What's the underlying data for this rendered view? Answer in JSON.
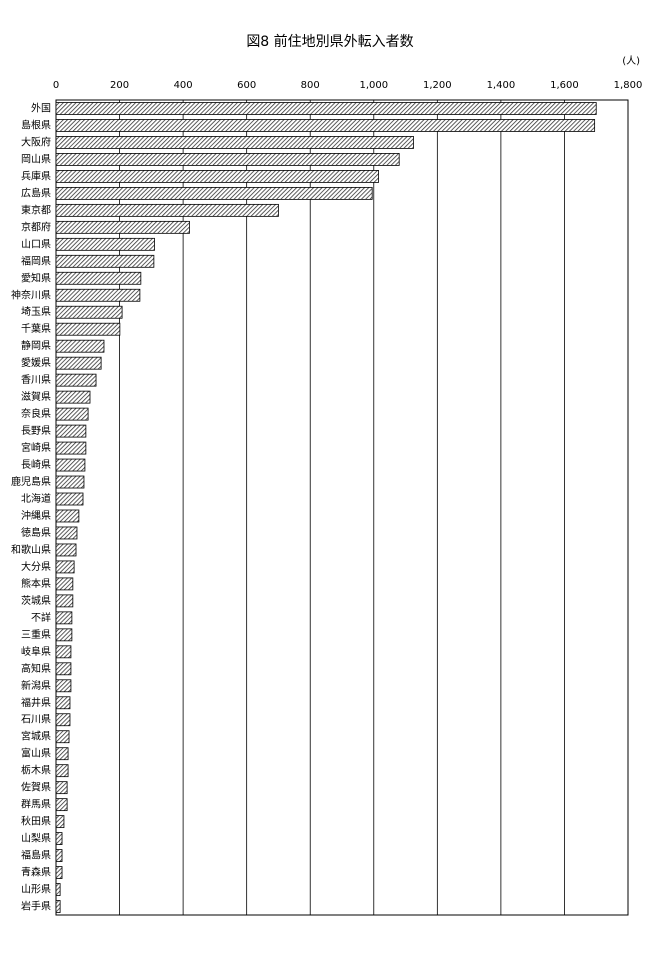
{
  "chart_data": {
    "type": "bar",
    "title": "図8 前住地別県外転入者数",
    "unit": "(人)",
    "categories": [
      "外国",
      "島根県",
      "大阪府",
      "岡山県",
      "兵庫県",
      "広島県",
      "東京都",
      "京都府",
      "山口県",
      "福岡県",
      "愛知県",
      "神奈川県",
      "埼玉県",
      "千葉県",
      "静岡県",
      "愛媛県",
      "香川県",
      "滋賀県",
      "奈良県",
      "長野県",
      "宮崎県",
      "長崎県",
      "鹿児島県",
      "北海道",
      "沖縄県",
      "徳島県",
      "和歌山県",
      "大分県",
      "熊本県",
      "茨城県",
      "不詳",
      "三重県",
      "岐阜県",
      "高知県",
      "新潟県",
      "福井県",
      "石川県",
      "宮城県",
      "富山県",
      "栃木県",
      "佐賀県",
      "群馬県",
      "秋田県",
      "山梨県",
      "福島県",
      "青森県",
      "山形県",
      "岩手県"
    ],
    "values": [
      1700,
      1695,
      1125,
      1080,
      1015,
      995,
      700,
      420,
      310,
      308,
      267,
      264,
      208,
      201,
      151,
      142,
      126,
      107,
      101,
      94,
      94,
      91,
      88,
      85,
      72,
      66,
      63,
      57,
      53,
      53,
      50,
      50,
      47,
      47,
      47,
      44,
      44,
      41,
      38,
      38,
      35,
      35,
      25,
      19,
      19,
      19,
      13,
      13
    ],
    "color": "#333333",
    "xlim": [
      0,
      1800
    ],
    "xticks": [
      0,
      200,
      400,
      600,
      800,
      {
        "value": 1000,
        "label": "1,000"
      },
      {
        "value": 1200,
        "label": "1,200"
      },
      {
        "value": 1400,
        "label": "1,400"
      },
      {
        "value": 1600,
        "label": "1,600"
      },
      {
        "value": 1800,
        "label": "1,800"
      }
    ],
    "grid": true
  }
}
